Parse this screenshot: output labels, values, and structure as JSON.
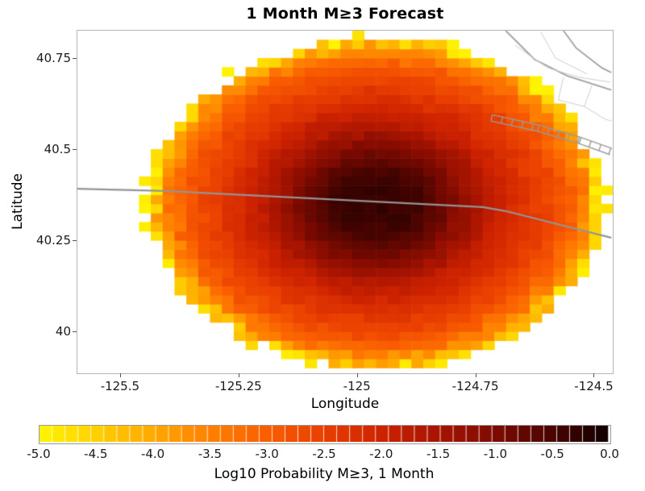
{
  "title": "1 Month M≥3 Forecast",
  "axes": {
    "x_label": "Longitude",
    "y_label": "Latitude",
    "x_ticks": [
      {
        "value": -125.5,
        "label": "-125.5"
      },
      {
        "value": -125.25,
        "label": "-125.25"
      },
      {
        "value": -125.0,
        "label": "-125"
      },
      {
        "value": -124.75,
        "label": "-124.75"
      },
      {
        "value": -124.5,
        "label": "-124.5"
      }
    ],
    "y_ticks": [
      {
        "value": 40.75,
        "label": "40.75"
      },
      {
        "value": 40.5,
        "label": "40.5"
      },
      {
        "value": 40.25,
        "label": "40.25"
      },
      {
        "value": 40.0,
        "label": "40"
      }
    ]
  },
  "colorbar": {
    "label": "Log10 Probability M≥3, 1 Month",
    "min": -5,
    "max": 0,
    "ticks": [
      "-5.0",
      "-4.5",
      "-4.0",
      "-3.5",
      "-3.0",
      "-2.5",
      "-2.0",
      "-1.5",
      "-1.0",
      "-0.5",
      "0.0"
    ]
  },
  "chart_data": {
    "type": "heatmap",
    "title": "1 Month M≥3 Forecast",
    "xlabel": "Longitude",
    "ylabel": "Latitude",
    "value_label": "Log10 Probability M≥3, 1 Month",
    "x_range": [
      -125.59,
      -124.46
    ],
    "y_range": [
      39.885,
      40.825
    ],
    "cell_size_deg": 0.025,
    "value_range": [
      -5,
      0
    ],
    "center": [
      -124.96,
      40.35
    ],
    "radius_deg": {
      "rx": 0.48,
      "ry": 0.455
    },
    "radial_profile": [
      {
        "r": 0.0,
        "v": -0.3
      },
      {
        "r": 0.18,
        "v": -0.42
      },
      {
        "r": 0.3,
        "v": -0.85
      },
      {
        "r": 0.4,
        "v": -1.3
      },
      {
        "r": 0.5,
        "v": -1.8
      },
      {
        "r": 0.62,
        "v": -2.2
      },
      {
        "r": 0.75,
        "v": -2.6
      },
      {
        "r": 0.85,
        "v": -3.0
      },
      {
        "r": 0.92,
        "v": -3.6
      },
      {
        "r": 0.97,
        "v": -4.3
      },
      {
        "r": 1.0,
        "v": -5.0
      }
    ],
    "colormap": [
      {
        "value": -5.0,
        "color": "#fff500"
      },
      {
        "value": -4.5,
        "color": "#ffd000"
      },
      {
        "value": -4.0,
        "color": "#ffa800"
      },
      {
        "value": -3.5,
        "color": "#ff8000"
      },
      {
        "value": -3.0,
        "color": "#f95d00"
      },
      {
        "value": -2.5,
        "color": "#e93e00"
      },
      {
        "value": -2.0,
        "color": "#cd2200"
      },
      {
        "value": -1.5,
        "color": "#a81400"
      },
      {
        "value": -1.0,
        "color": "#7d0a00"
      },
      {
        "value": -0.5,
        "color": "#4a0400"
      },
      {
        "value": 0.0,
        "color": "#100000"
      }
    ],
    "map_lines": [
      {
        "name": "fault-trace-main",
        "color": "#949494",
        "width": 2.2,
        "hatched": false,
        "points": [
          [
            -125.59,
            40.391
          ],
          [
            -125.403,
            40.385
          ],
          [
            -124.734,
            40.341
          ],
          [
            -124.686,
            40.33
          ],
          [
            -124.463,
            40.257
          ]
        ]
      },
      {
        "name": "fault-trace-ne-1",
        "color": "#a0a0a0",
        "width": 1.8,
        "hatched": false,
        "points": [
          [
            -124.686,
            40.825
          ],
          [
            -124.625,
            40.746
          ],
          [
            -124.556,
            40.701
          ],
          [
            -124.463,
            40.662
          ]
        ]
      },
      {
        "name": "fault-trace-ne-2",
        "color": "#a0a0a0",
        "width": 1.8,
        "hatched": false,
        "points": [
          [
            -124.564,
            40.825
          ],
          [
            -124.537,
            40.777
          ],
          [
            -124.483,
            40.723
          ],
          [
            -124.463,
            40.71
          ]
        ]
      },
      {
        "name": "fault-zone-hatched",
        "color": "#9a9a9a",
        "width": 1.4,
        "hatched": true,
        "points": [
          [
            -124.717,
            40.577
          ],
          [
            -124.619,
            40.549
          ],
          [
            -124.531,
            40.515
          ],
          [
            -124.466,
            40.485
          ]
        ]
      },
      {
        "name": "fault-trace-light-1",
        "color": "#cccccc",
        "width": 1,
        "hatched": false,
        "points": [
          [
            -124.666,
            40.785
          ],
          [
            -124.598,
            40.723
          ],
          [
            -124.531,
            40.697
          ],
          [
            -124.466,
            40.684
          ]
        ]
      },
      {
        "name": "fault-trace-light-2",
        "color": "#cccccc",
        "width": 1,
        "hatched": false,
        "points": [
          [
            -124.612,
            40.821
          ],
          [
            -124.581,
            40.75
          ],
          [
            -124.514,
            40.706
          ]
        ]
      },
      {
        "name": "fault-trace-light-3",
        "color": "#cccccc",
        "width": 1,
        "hatched": false,
        "points": [
          [
            -124.503,
            40.679
          ],
          [
            -124.52,
            40.617
          ],
          [
            -124.476,
            40.582
          ],
          [
            -124.463,
            40.577
          ]
        ]
      },
      {
        "name": "fault-trace-light-4",
        "color": "#cccccc",
        "width": 1,
        "hatched": false,
        "points": [
          [
            -124.564,
            40.697
          ],
          [
            -124.575,
            40.635
          ],
          [
            -124.52,
            40.617
          ]
        ]
      }
    ]
  }
}
